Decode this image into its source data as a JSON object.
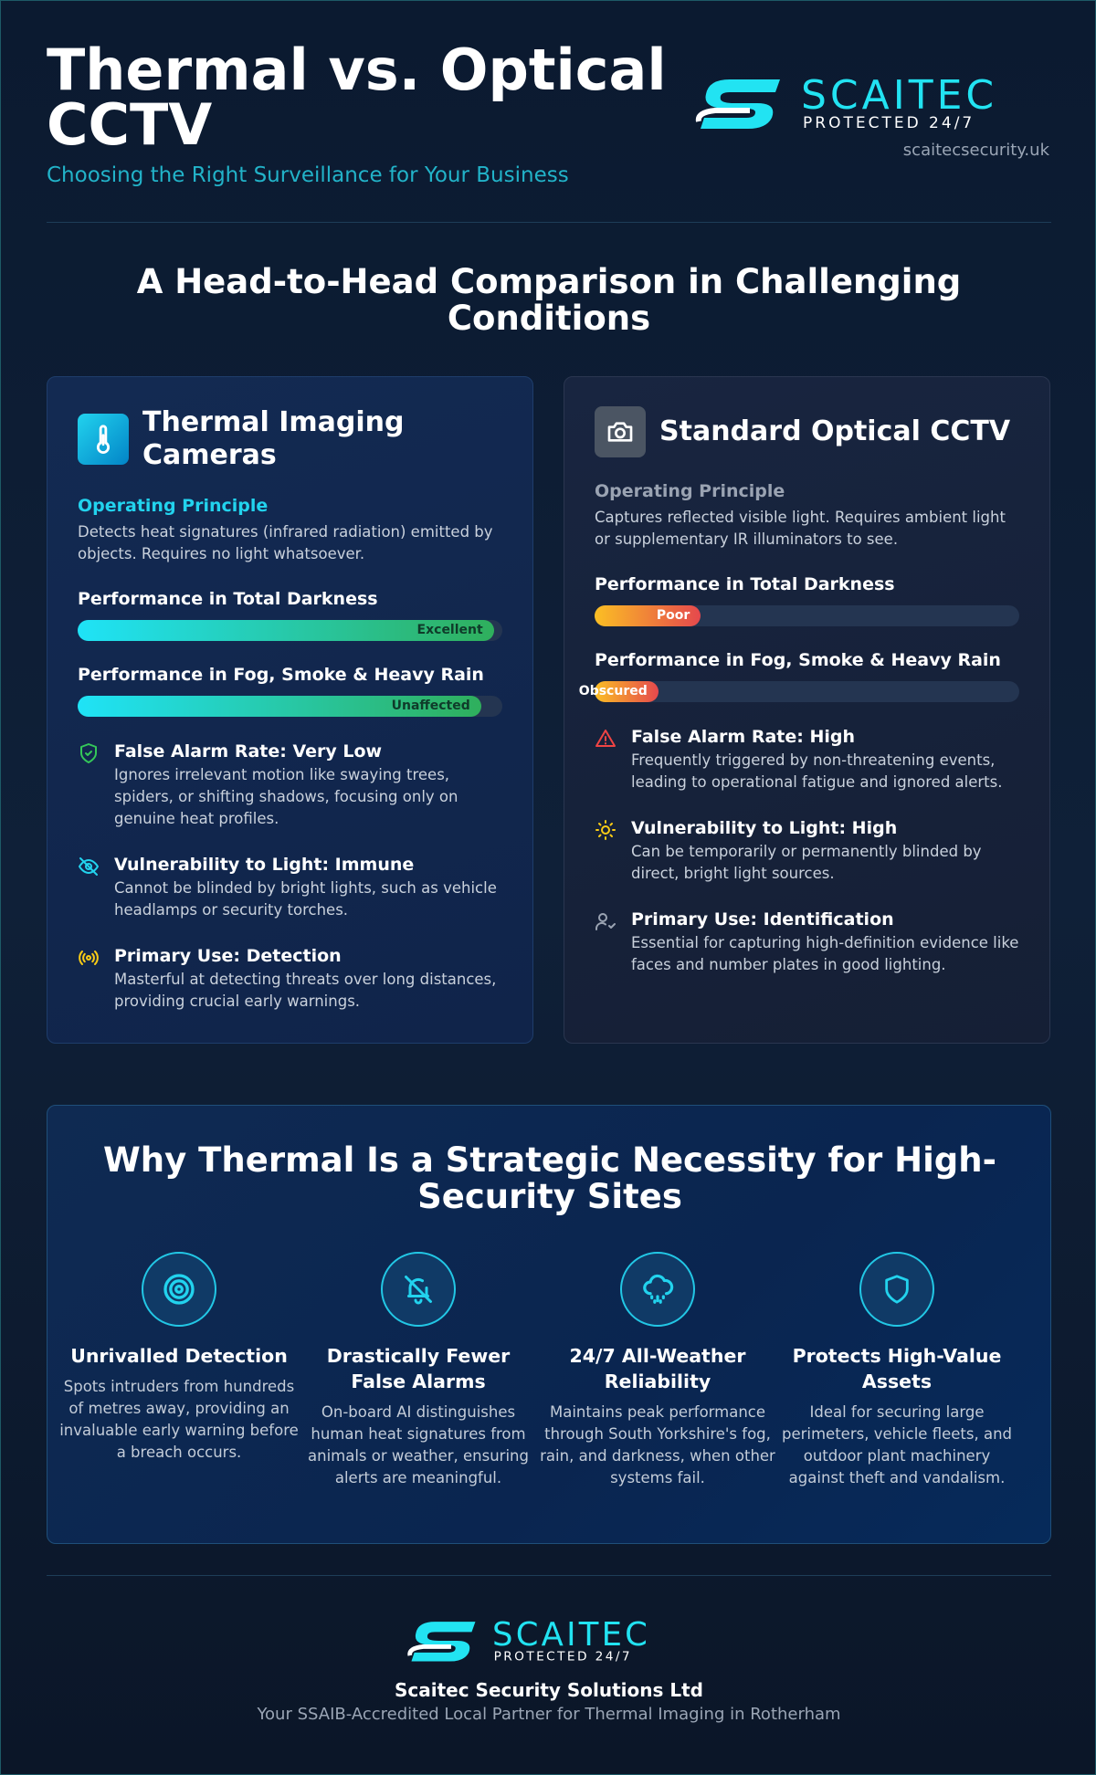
{
  "header": {
    "title": "Thermal vs. Optical CCTV",
    "subtitle": "Choosing the Right Surveillance for Your Business",
    "logo": {
      "name": "SCAITEC",
      "tagline": "PROTECTED 24/7"
    },
    "website": "scaitecsecurity.uk"
  },
  "comparison": {
    "heading": "A Head-to-Head Comparison in Challenging Conditions",
    "cards": [
      {
        "title": "Thermal Imaging Cameras",
        "principle_label": "Operating Principle",
        "principle": "Detects heat signatures (infrared radiation) emitted by objects. Requires no light whatsoever.",
        "metrics": [
          {
            "label": "Performance in Total Darkness",
            "rating": "Excellent",
            "level": 98
          },
          {
            "label": "Performance in Fog, Smoke & Heavy Rain",
            "rating": "Unaffected",
            "level": 95
          }
        ],
        "features": [
          {
            "title": "False Alarm Rate: Very Low",
            "text": "Ignores irrelevant motion like swaying trees, spiders, or shifting shadows, focusing only on genuine heat profiles."
          },
          {
            "title": "Vulnerability to Light: Immune",
            "text": "Cannot be blinded by bright lights, such as vehicle headlamps or security torches."
          },
          {
            "title": "Primary Use: Detection",
            "text": "Masterful at detecting threats over long distances, providing crucial early warnings."
          }
        ]
      },
      {
        "title": "Standard Optical CCTV",
        "principle_label": "Operating Principle",
        "principle": "Captures reflected visible light. Requires ambient light or supplementary IR illuminators to see.",
        "metrics": [
          {
            "label": "Performance in Total Darkness",
            "rating": "Poor",
            "level": 25
          },
          {
            "label": "Performance in Fog, Smoke & Heavy Rain",
            "rating": "Obscured",
            "level": 15
          }
        ],
        "features": [
          {
            "title": "False Alarm Rate: High",
            "text": "Frequently triggered by non-threatening events, leading to operational fatigue and ignored alerts."
          },
          {
            "title": "Vulnerability to Light: High",
            "text": "Can be temporarily or permanently blinded by direct, bright light sources."
          },
          {
            "title": "Primary Use: Identification",
            "text": "Essential for capturing high-definition evidence like faces and number plates in good lighting."
          }
        ]
      }
    ]
  },
  "why": {
    "heading": "Why Thermal Is a Strategic Necessity for High-Security Sites",
    "items": [
      {
        "title": "Unrivalled Detection",
        "text": "Spots intruders from hundreds of metres away, providing an invaluable early warning before a breach occurs."
      },
      {
        "title": "Drastically Fewer False Alarms",
        "text": "On-board AI distinguishes human heat signatures from animals or weather, ensuring alerts are meaningful."
      },
      {
        "title": "24/7 All-Weather Reliability",
        "text": "Maintains peak performance through South Yorkshire's fog, rain, and darkness, when other systems fail."
      },
      {
        "title": "Protects High-Value Assets",
        "text": "Ideal for securing large perimeters, vehicle fleets, and outdoor plant machinery against theft and vandalism."
      }
    ]
  },
  "footer": {
    "company": "Scaitec Security Solutions Ltd",
    "tagline": "Your SSAIB-Accredited Local Partner for Thermal Imaging in Rotherham"
  }
}
